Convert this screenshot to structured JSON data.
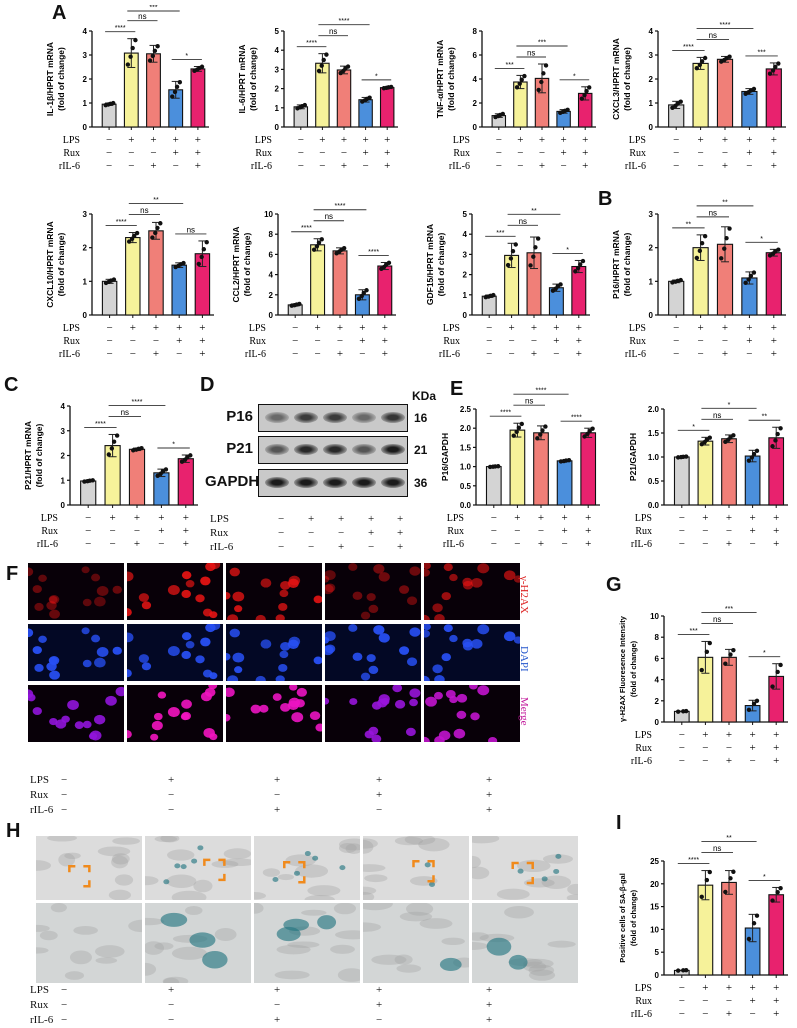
{
  "panel_letters": {
    "A": "A",
    "B": "B",
    "C": "C",
    "D": "D",
    "E": "E",
    "F": "F",
    "G": "G",
    "H": "H",
    "I": "I"
  },
  "treatments": {
    "rows": [
      {
        "label": "LPS",
        "marks": [
          "−",
          "+",
          "+",
          "+",
          "+"
        ]
      },
      {
        "label": "Rux",
        "marks": [
          "−",
          "−",
          "−",
          "+",
          "+"
        ]
      },
      {
        "label": "rIL-6",
        "marks": [
          "−",
          "−",
          "+",
          "−",
          "+"
        ]
      }
    ]
  },
  "colors": {
    "groups": [
      "#d4d4d4",
      "#f6f29a",
      "#f07f78",
      "#4b8fdc",
      "#e8226e"
    ],
    "error": "#222222"
  },
  "western": {
    "rows": [
      {
        "label": "P16",
        "kda": "16"
      },
      {
        "label": "P21",
        "kda": "21"
      },
      {
        "label": "GAPDH",
        "kda": "36"
      }
    ],
    "kda_header": "KDa",
    "band_intensity": [
      [
        0.35,
        0.7,
        0.7,
        0.35,
        0.75
      ],
      [
        0.5,
        0.85,
        0.85,
        0.5,
        0.95
      ],
      [
        0.95,
        0.95,
        0.95,
        0.95,
        0.95
      ]
    ]
  },
  "fluorescence": {
    "channels": [
      "γ-H2AX",
      "DAPI",
      "Merge"
    ],
    "gamma_h2ax_intensity": [
      0.25,
      0.95,
      0.9,
      0.3,
      0.6
    ]
  },
  "sa_beta_gal": {
    "staining_level": [
      0.05,
      0.8,
      0.75,
      0.3,
      0.6
    ]
  },
  "chart_data": [
    {
      "type": "bar",
      "panel": "A",
      "ylabel": [
        "IL-1β/HPRT mRNA",
        "(fold of change)"
      ],
      "ylim": [
        0,
        4
      ],
      "yticks": [
        "0",
        "1",
        "2",
        "3",
        "4"
      ],
      "values": [
        0.95,
        3.08,
        3.05,
        1.55,
        2.42
      ],
      "sd": [
        0.05,
        0.6,
        0.35,
        0.35,
        0.1
      ],
      "n": 4,
      "significance": [
        {
          "from": 0,
          "to": 1,
          "label": "****"
        },
        {
          "from": 1,
          "to": 2,
          "label": "ns"
        },
        {
          "from": 1,
          "to": 3,
          "label": "***"
        },
        {
          "from": 3,
          "to": 4,
          "label": "*"
        }
      ]
    },
    {
      "type": "bar",
      "panel": "A",
      "ylabel": [
        "IL-6/HPRT mRNA",
        "(fold of change)"
      ],
      "ylim": [
        0,
        5
      ],
      "yticks": [
        "0",
        "1",
        "2",
        "3",
        "4",
        "5"
      ],
      "values": [
        1.05,
        3.32,
        2.97,
        1.42,
        2.05
      ],
      "sd": [
        0.1,
        0.5,
        0.2,
        0.12,
        0.04
      ],
      "n": 4,
      "significance": [
        {
          "from": 0,
          "to": 1,
          "label": "****"
        },
        {
          "from": 1,
          "to": 2,
          "label": "ns"
        },
        {
          "from": 1,
          "to": 3,
          "label": "****"
        },
        {
          "from": 3,
          "to": 4,
          "label": "*"
        }
      ]
    },
    {
      "type": "bar",
      "panel": "A",
      "ylabel": [
        "TNF-α/HPRT mRNA",
        "(fold of change)"
      ],
      "ylim": [
        0,
        8
      ],
      "yticks": [
        "0",
        "2",
        "4",
        "6",
        "8"
      ],
      "values": [
        0.95,
        3.75,
        4.05,
        1.3,
        2.8
      ],
      "sd": [
        0.15,
        0.55,
        1.2,
        0.15,
        0.55
      ],
      "n": 4,
      "significance": [
        {
          "from": 0,
          "to": 1,
          "label": "***"
        },
        {
          "from": 1,
          "to": 2,
          "label": "ns"
        },
        {
          "from": 1,
          "to": 3,
          "label": "***"
        },
        {
          "from": 3,
          "to": 4,
          "label": "*"
        }
      ]
    },
    {
      "type": "bar",
      "panel": "A",
      "ylabel": [
        "CXCL3/HPRT mRNA",
        "(fold of change)"
      ],
      "ylim": [
        0,
        4
      ],
      "yticks": [
        "0",
        "1",
        "2",
        "3",
        "4"
      ],
      "values": [
        0.92,
        2.65,
        2.82,
        1.48,
        2.42
      ],
      "sd": [
        0.15,
        0.25,
        0.12,
        0.12,
        0.25
      ],
      "n": 4,
      "significance": [
        {
          "from": 0,
          "to": 1,
          "label": "****"
        },
        {
          "from": 1,
          "to": 2,
          "label": "ns"
        },
        {
          "from": 1,
          "to": 3,
          "label": "****"
        },
        {
          "from": 3,
          "to": 4,
          "label": "***"
        }
      ]
    },
    {
      "type": "bar",
      "panel": "A",
      "ylabel": [
        "CXCL10/HPRT mRNA",
        "(fold of change)"
      ],
      "ylim": [
        0,
        3
      ],
      "yticks": [
        "0",
        "1",
        "2",
        "3"
      ],
      "values": [
        1.0,
        2.3,
        2.5,
        1.48,
        1.82
      ],
      "sd": [
        0.06,
        0.15,
        0.25,
        0.07,
        0.38
      ],
      "n": 4,
      "significance": [
        {
          "from": 0,
          "to": 1,
          "label": "****"
        },
        {
          "from": 1,
          "to": 2,
          "label": "ns"
        },
        {
          "from": 1,
          "to": 3,
          "label": "**"
        },
        {
          "from": 3,
          "to": 4,
          "label": "ns"
        }
      ]
    },
    {
      "type": "bar",
      "panel": "A",
      "ylabel": [
        "CCL2/HPRT mRNA",
        "(fold of change)"
      ],
      "ylim": [
        0,
        10
      ],
      "yticks": [
        "0",
        "2",
        "4",
        "6",
        "8",
        "10"
      ],
      "values": [
        1.0,
        6.95,
        6.35,
        2.0,
        4.85
      ],
      "sd": [
        0.1,
        0.6,
        0.3,
        0.5,
        0.35
      ],
      "n": 4,
      "significance": [
        {
          "from": 0,
          "to": 1,
          "label": "****"
        },
        {
          "from": 1,
          "to": 2,
          "label": "ns"
        },
        {
          "from": 1,
          "to": 3,
          "label": "****"
        },
        {
          "from": 3,
          "to": 4,
          "label": "****"
        }
      ]
    },
    {
      "type": "bar",
      "panel": "A",
      "ylabel": [
        "GDF15/HPRT mRNA",
        "(fold of change)"
      ],
      "ylim": [
        0,
        5
      ],
      "yticks": [
        "0",
        "1",
        "2",
        "3",
        "4",
        "5"
      ],
      "values": [
        0.93,
        2.95,
        3.08,
        1.35,
        2.4
      ],
      "sd": [
        0.06,
        0.6,
        0.78,
        0.18,
        0.3
      ],
      "n": 4,
      "significance": [
        {
          "from": 0,
          "to": 1,
          "label": "***"
        },
        {
          "from": 1,
          "to": 2,
          "label": "ns"
        },
        {
          "from": 1,
          "to": 3,
          "label": "**"
        },
        {
          "from": 3,
          "to": 4,
          "label": "*"
        }
      ]
    },
    {
      "type": "bar",
      "panel": "B",
      "ylabel": [
        "P16/HPRT mRNA",
        "(fold of change)"
      ],
      "ylim": [
        0,
        3
      ],
      "yticks": [
        "0",
        "1",
        "2",
        "3"
      ],
      "values": [
        1.0,
        2.0,
        2.1,
        1.1,
        1.85
      ],
      "sd": [
        0.04,
        0.38,
        0.52,
        0.18,
        0.1
      ],
      "n": 4,
      "significance": [
        {
          "from": 0,
          "to": 1,
          "label": "**"
        },
        {
          "from": 1,
          "to": 2,
          "label": "ns"
        },
        {
          "from": 1,
          "to": 3,
          "label": "**"
        },
        {
          "from": 3,
          "to": 4,
          "label": "*"
        }
      ]
    },
    {
      "type": "bar",
      "panel": "C",
      "ylabel": [
        "P21/HPRT mRNA",
        "(fold of change)"
      ],
      "ylim": [
        0,
        4
      ],
      "yticks": [
        "0",
        "1",
        "2",
        "3",
        "4"
      ],
      "values": [
        0.97,
        2.4,
        2.25,
        1.3,
        1.87
      ],
      "sd": [
        0.03,
        0.45,
        0.05,
        0.15,
        0.15
      ],
      "n": 4,
      "significance": [
        {
          "from": 0,
          "to": 1,
          "label": "****"
        },
        {
          "from": 1,
          "to": 2,
          "label": "ns"
        },
        {
          "from": 1,
          "to": 3,
          "label": "****"
        },
        {
          "from": 3,
          "to": 4,
          "label": "*"
        }
      ]
    },
    {
      "type": "bar",
      "panel": "E",
      "ylabel": [
        "P16/GAPDH"
      ],
      "ylim": [
        0,
        2.5
      ],
      "yticks": [
        "0.0",
        "0.5",
        "1.0",
        "1.5",
        "2.0",
        "2.5"
      ],
      "values": [
        1.0,
        1.95,
        1.88,
        1.15,
        1.88
      ],
      "sd": [
        0.01,
        0.18,
        0.18,
        0.02,
        0.12
      ],
      "n": 4,
      "significance": [
        {
          "from": 0,
          "to": 1,
          "label": "****"
        },
        {
          "from": 1,
          "to": 2,
          "label": "ns"
        },
        {
          "from": 1,
          "to": 3,
          "label": "****"
        },
        {
          "from": 3,
          "to": 4,
          "label": "****"
        }
      ]
    },
    {
      "type": "bar",
      "panel": "E",
      "ylabel": [
        "P21/GAPDH"
      ],
      "ylim": [
        0,
        2.0
      ],
      "yticks": [
        "0.0",
        "0.5",
        "1.0",
        "1.5",
        "2.0"
      ],
      "values": [
        1.0,
        1.33,
        1.38,
        1.02,
        1.4
      ],
      "sd": [
        0.01,
        0.08,
        0.08,
        0.12,
        0.22
      ],
      "n": 4,
      "significance": [
        {
          "from": 0,
          "to": 1,
          "label": "*"
        },
        {
          "from": 1,
          "to": 2,
          "label": "ns"
        },
        {
          "from": 1,
          "to": 3,
          "label": "*"
        },
        {
          "from": 3,
          "to": 4,
          "label": "**"
        }
      ]
    },
    {
      "type": "bar",
      "panel": "G",
      "ylabel": [
        "γ-H2AX Fluoresence Intensity",
        "(fold of change)"
      ],
      "ylim": [
        0,
        10
      ],
      "yticks": [
        "0",
        "2",
        "4",
        "6",
        "8",
        "10"
      ],
      "values": [
        1.0,
        6.1,
        6.1,
        1.55,
        4.3
      ],
      "sd": [
        0.03,
        1.5,
        0.75,
        0.5,
        1.2
      ],
      "n": 3,
      "significance": [
        {
          "from": 0,
          "to": 1,
          "label": "***"
        },
        {
          "from": 1,
          "to": 2,
          "label": "ns"
        },
        {
          "from": 1,
          "to": 3,
          "label": "***"
        },
        {
          "from": 3,
          "to": 4,
          "label": "*"
        }
      ]
    },
    {
      "type": "bar",
      "panel": "I",
      "ylabel": [
        "Positive cells of SA-β-gal",
        "(fold of change)"
      ],
      "ylim": [
        0,
        25
      ],
      "yticks": [
        "0",
        "5",
        "10",
        "15",
        "20",
        "25"
      ],
      "values": [
        1.0,
        19.7,
        20.3,
        10.3,
        17.6
      ],
      "sd": [
        0.05,
        3.2,
        2.6,
        3.0,
        1.6
      ],
      "n": 3,
      "significance": [
        {
          "from": 0,
          "to": 1,
          "label": "****"
        },
        {
          "from": 1,
          "to": 2,
          "label": "ns"
        },
        {
          "from": 1,
          "to": 3,
          "label": "**"
        },
        {
          "from": 3,
          "to": 4,
          "label": "*"
        }
      ]
    }
  ]
}
